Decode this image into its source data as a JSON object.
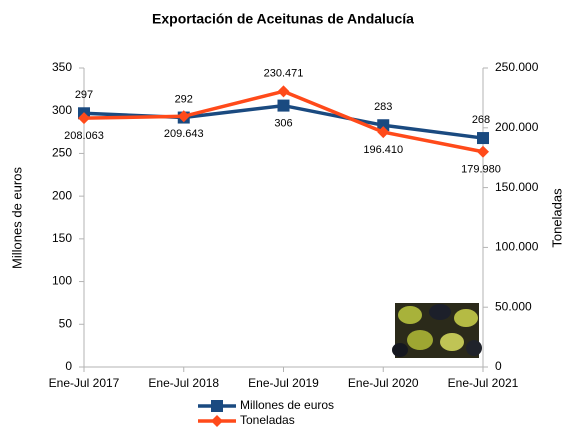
{
  "chart_data": {
    "type": "line",
    "title": "Exportación de Aceitunas de Andalucía",
    "ylabel": "Millones de euros",
    "y2label": "Toneladas",
    "categories": [
      "Ene-Jul 2017",
      "Ene-Jul 2018",
      "Ene-Jul 2019",
      "Ene-Jul 2020",
      "Ene-Jul 2021"
    ],
    "series": [
      {
        "name": "Millones de euros",
        "color": "#1a4a80",
        "marker": "square",
        "values": [
          297,
          292,
          306,
          283,
          268
        ]
      },
      {
        "name": "Toneladas",
        "color": "#ff4a1a",
        "marker": "diamond",
        "axis": "y2",
        "values": [
          208063,
          209643,
          230471,
          196410,
          179980
        ],
        "value_labels": [
          "208.063",
          "209.643",
          "230.471",
          "196.410",
          "179.980"
        ]
      }
    ],
    "ylim": [
      0,
      350
    ],
    "yticks": [
      0,
      50,
      100,
      150,
      200,
      250,
      300,
      350
    ],
    "y2lim": [
      0,
      250000
    ],
    "y2ticks": [
      0,
      {
        "value": 50000,
        "label": "50.000"
      },
      {
        "value": 100000,
        "label": "100.000"
      },
      {
        "value": 150000,
        "label": "150.000"
      },
      {
        "value": 200000,
        "label": "200.000"
      },
      {
        "value": 250000,
        "label": "250.000"
      }
    ],
    "legend": "bottom"
  }
}
